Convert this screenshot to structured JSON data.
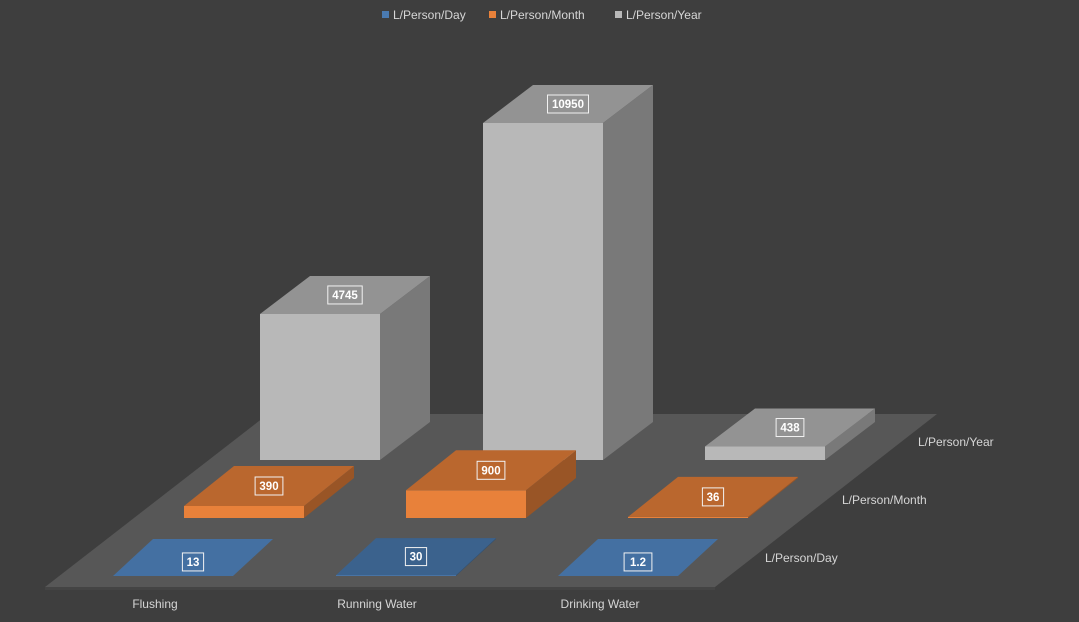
{
  "chart_data": {
    "type": "bar",
    "subtype": "3d-column-series-depth",
    "categories": [
      "Flushing",
      "Running Water",
      "Drinking Water"
    ],
    "series": [
      {
        "name": "L/Person/Day",
        "values": [
          13,
          30,
          1.2
        ],
        "labels": [
          "13",
          "30",
          "1.2"
        ],
        "color": "#4a7ab0"
      },
      {
        "name": "L/Person/Month",
        "values": [
          390,
          900,
          36
        ],
        "labels": [
          "390",
          "900",
          "36"
        ],
        "color": "#e8813a"
      },
      {
        "name": "L/Person/Year",
        "values": [
          4745,
          10950,
          438
        ],
        "labels": [
          "4745",
          "10950",
          "438"
        ],
        "color": "#b8b8b8"
      }
    ],
    "legend": {
      "position": "top"
    },
    "grid": false,
    "background": "#3e3e3e",
    "floor_color": "#575757",
    "text_color": "#d6d6d6"
  }
}
